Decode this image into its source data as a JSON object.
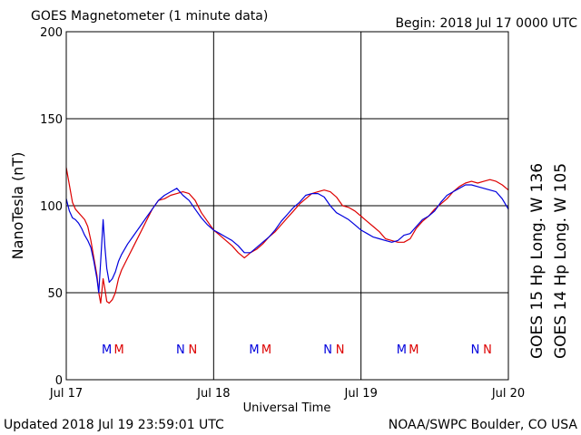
{
  "header": {
    "title": "GOES Magnetometer (1 minute data)",
    "begin": "Begin:  2018 Jul 17 0000 UTC"
  },
  "footer": {
    "updated": "Updated 2018 Jul 19 23:59:01 UTC",
    "credit": "NOAA/SWPC Boulder, CO USA"
  },
  "colors": {
    "goes15": "#dd0000",
    "goes14": "#0000dd",
    "grid": "#000000"
  },
  "chart_data": {
    "type": "line",
    "title": "GOES Magnetometer (1 minute data)",
    "xlabel": "Universal Time",
    "ylabel": "NanoTesla (nT)",
    "ylim": [
      0,
      200
    ],
    "xlim_hours": [
      0,
      72
    ],
    "yticks": [
      "0",
      "50",
      "100",
      "150",
      "200"
    ],
    "xticks": [
      {
        "label": "Jul 17",
        "hour": 0
      },
      {
        "label": "Jul 18",
        "hour": 24
      },
      {
        "label": "Jul 19",
        "hour": 48
      },
      {
        "label": "Jul 20",
        "hour": 72
      }
    ],
    "grid": true,
    "markers": [
      {
        "label": "M",
        "hour": 6.6,
        "series": "GOES 14"
      },
      {
        "label": "M",
        "hour": 8.6,
        "series": "GOES 15"
      },
      {
        "label": "N",
        "hour": 18.6,
        "series": "GOES 14"
      },
      {
        "label": "N",
        "hour": 20.6,
        "series": "GOES 15"
      },
      {
        "label": "M",
        "hour": 30.6,
        "series": "GOES 14"
      },
      {
        "label": "M",
        "hour": 32.6,
        "series": "GOES 15"
      },
      {
        "label": "N",
        "hour": 42.6,
        "series": "GOES 14"
      },
      {
        "label": "N",
        "hour": 44.6,
        "series": "GOES 15"
      },
      {
        "label": "M",
        "hour": 54.6,
        "series": "GOES 14"
      },
      {
        "label": "M",
        "hour": 56.6,
        "series": "GOES 15"
      },
      {
        "label": "N",
        "hour": 66.6,
        "series": "GOES 14"
      },
      {
        "label": "N",
        "hour": 68.6,
        "series": "GOES 15"
      }
    ],
    "series": [
      {
        "name": "GOES 15 Hp  Long. W 136",
        "color": "#dd0000",
        "x": [
          0,
          0.5,
          1,
          1.5,
          2,
          2.5,
          3,
          3.5,
          4,
          4.5,
          5,
          5.3,
          5.6,
          6,
          6.3,
          6.6,
          7,
          7.5,
          8,
          8.5,
          9,
          10,
          11,
          12,
          13,
          14,
          15,
          16,
          17,
          18,
          19,
          20,
          21,
          22,
          23,
          24,
          25,
          26,
          27,
          28,
          29,
          30,
          31,
          32,
          33,
          34,
          35,
          36,
          37,
          38,
          39,
          40,
          41,
          42,
          43,
          44,
          45,
          46,
          47,
          48,
          49,
          50,
          51,
          52,
          53,
          54,
          55,
          56,
          57,
          58,
          59,
          60,
          61,
          62,
          63,
          64,
          65,
          66,
          67,
          68,
          69,
          70,
          71,
          72
        ],
        "y": [
          122,
          112,
          102,
          98,
          96,
          94,
          92,
          88,
          80,
          70,
          60,
          50,
          44,
          58,
          52,
          45,
          44,
          46,
          50,
          58,
          63,
          70,
          77,
          84,
          91,
          98,
          103,
          104,
          106,
          107,
          108,
          107,
          103,
          96,
          91,
          86,
          83,
          80,
          77,
          73,
          70,
          73,
          75,
          78,
          82,
          85,
          89,
          93,
          97,
          101,
          104,
          107,
          108,
          109,
          108,
          105,
          100,
          99,
          97,
          94,
          91,
          88,
          85,
          81,
          80,
          79,
          79,
          81,
          87,
          91,
          94,
          98,
          101,
          104,
          108,
          111,
          113,
          114,
          113,
          114,
          115,
          114,
          112,
          109
        ]
      },
      {
        "name": "GOES 14 Hp  Long. W 105",
        "color": "#0000dd",
        "x": [
          0,
          0.5,
          1,
          1.5,
          2,
          2.5,
          3,
          3.5,
          4,
          4.5,
          5,
          5.3,
          5.6,
          6,
          6.3,
          6.6,
          7,
          7.5,
          8,
          8.5,
          9,
          10,
          11,
          12,
          13,
          14,
          15,
          16,
          17,
          18,
          19,
          20,
          21,
          22,
          23,
          24,
          25,
          26,
          27,
          28,
          29,
          30,
          31,
          32,
          33,
          34,
          35,
          36,
          37,
          38,
          39,
          40,
          41,
          42,
          43,
          44,
          45,
          46,
          47,
          48,
          49,
          50,
          51,
          52,
          53,
          54,
          55,
          56,
          57,
          58,
          59,
          60,
          61,
          62,
          63,
          64,
          65,
          66,
          67,
          68,
          69,
          70,
          71,
          72
        ],
        "y": [
          104,
          97,
          93,
          92,
          90,
          87,
          83,
          80,
          76,
          68,
          58,
          50,
          68,
          92,
          76,
          64,
          56,
          58,
          62,
          68,
          72,
          78,
          83,
          88,
          93,
          98,
          103,
          106,
          108,
          110,
          106,
          103,
          98,
          93,
          89,
          86,
          84,
          82,
          80,
          77,
          73,
          73,
          76,
          79,
          82,
          86,
          91,
          95,
          99,
          102,
          106,
          107,
          107,
          105,
          100,
          96,
          94,
          92,
          89,
          86,
          84,
          82,
          81,
          80,
          79,
          80,
          83,
          84,
          88,
          92,
          94,
          97,
          102,
          106,
          108,
          110,
          112,
          112,
          111,
          110,
          109,
          108,
          104,
          98
        ]
      }
    ]
  }
}
